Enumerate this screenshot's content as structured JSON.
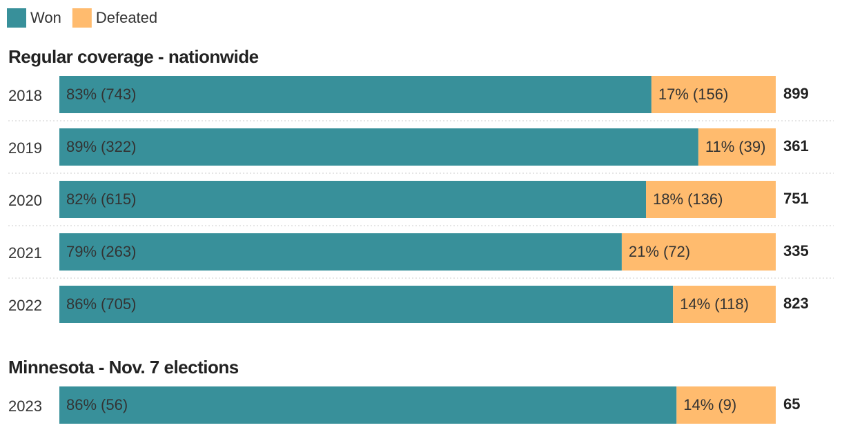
{
  "chart_data": [
    {
      "type": "stacked-bar",
      "title": "Regular coverage - nationwide",
      "categories": [
        "2018",
        "2019",
        "2020",
        "2021",
        "2022"
      ],
      "series": [
        {
          "name": "Won",
          "color": "#38909a",
          "values": [
            743,
            322,
            615,
            263,
            705
          ],
          "pct_labels": [
            "83%",
            "89%",
            "82%",
            "79%",
            "86%"
          ],
          "value_labels": [
            "(743)",
            "(322)",
            "(615)",
            "(263)",
            "(705)"
          ]
        },
        {
          "name": "Defeated",
          "color": "#ffbb6e",
          "values": [
            156,
            39,
            136,
            72,
            118
          ],
          "pct_labels": [
            "17%",
            "11%",
            "18%",
            "21%",
            "14%"
          ],
          "value_labels": [
            "(156)",
            "(39)",
            "(136)",
            "(72)",
            "(118)"
          ]
        }
      ],
      "totals": [
        899,
        361,
        751,
        335,
        823
      ]
    },
    {
      "type": "stacked-bar",
      "title": "Minnesota - Nov. 7 elections",
      "categories": [
        "2023"
      ],
      "series": [
        {
          "name": "Won",
          "color": "#38909a",
          "values": [
            56
          ],
          "pct_labels": [
            "86%"
          ],
          "value_labels": [
            "(56)"
          ]
        },
        {
          "name": "Defeated",
          "color": "#ffbb6e",
          "values": [
            9
          ],
          "pct_labels": [
            "14%"
          ],
          "value_labels": [
            "(9)"
          ]
        }
      ],
      "totals": [
        65
      ]
    }
  ]
}
